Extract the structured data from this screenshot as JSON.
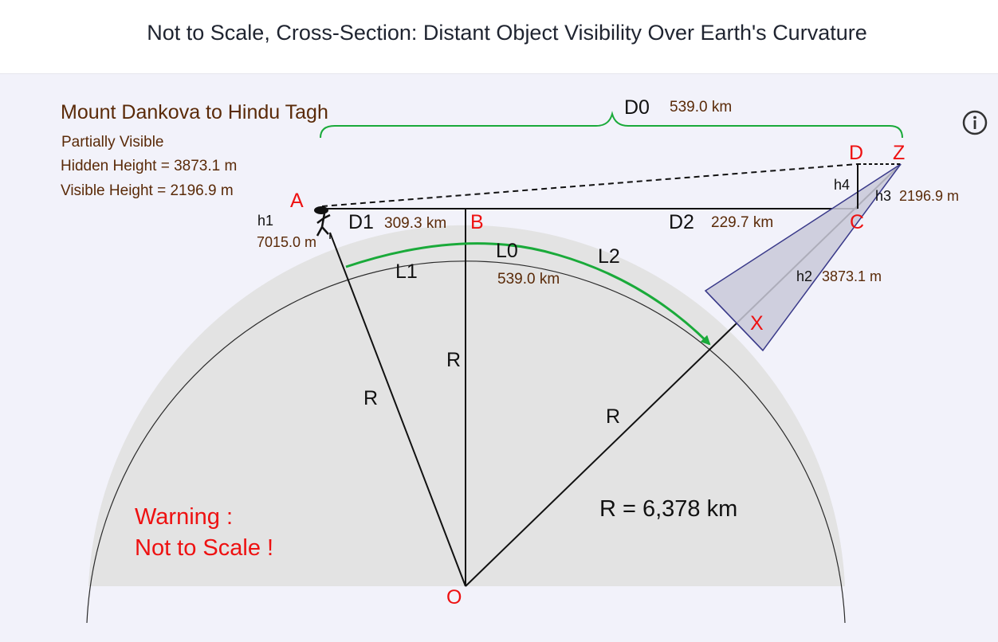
{
  "page": {
    "title": "Not to Scale, Cross-Section: Distant Object Visibility Over Earth's Curvature"
  },
  "info": {
    "icon": "info-circle-icon"
  },
  "summary": {
    "route": "Mount Dankova to Hindu Tagh",
    "status": "Partially Visible",
    "hidden_height": "Hidden Height = 3873.1 m",
    "visible_height": "Visible Height = 2196.9 m"
  },
  "points": {
    "A": "A",
    "B": "B",
    "C": "C",
    "D": "D",
    "Z": "Z",
    "X": "X",
    "O": "O"
  },
  "labels": {
    "D0": "D0",
    "D0_value": "539.0 km",
    "D1": "D1",
    "D1_value": "309.3 km",
    "D2": "D2",
    "D2_value": "229.7 km",
    "L0": "L0",
    "L0_value": "539.0 km",
    "L1": "L1",
    "L2": "L2",
    "h1": "h1",
    "h1_value": "7015.0 m",
    "h2": "h2",
    "h2_value": "3873.1 m",
    "h3": "h3",
    "h3_value": "2196.9 m",
    "h4": "h4",
    "R": "R",
    "R_value": "R = 6,378 km"
  },
  "warning": {
    "line1": "Warning :",
    "line2": "Not to Scale !"
  },
  "colors": {
    "earth_fill": "#e3e3e3",
    "earth_outline": "#2a2a2a",
    "green": "#1aaa3a",
    "red": "#ee1111",
    "brown": "#5a2a08",
    "triangle_fill": "#c9c9d8",
    "triangle_stroke": "#3a3a8a"
  }
}
